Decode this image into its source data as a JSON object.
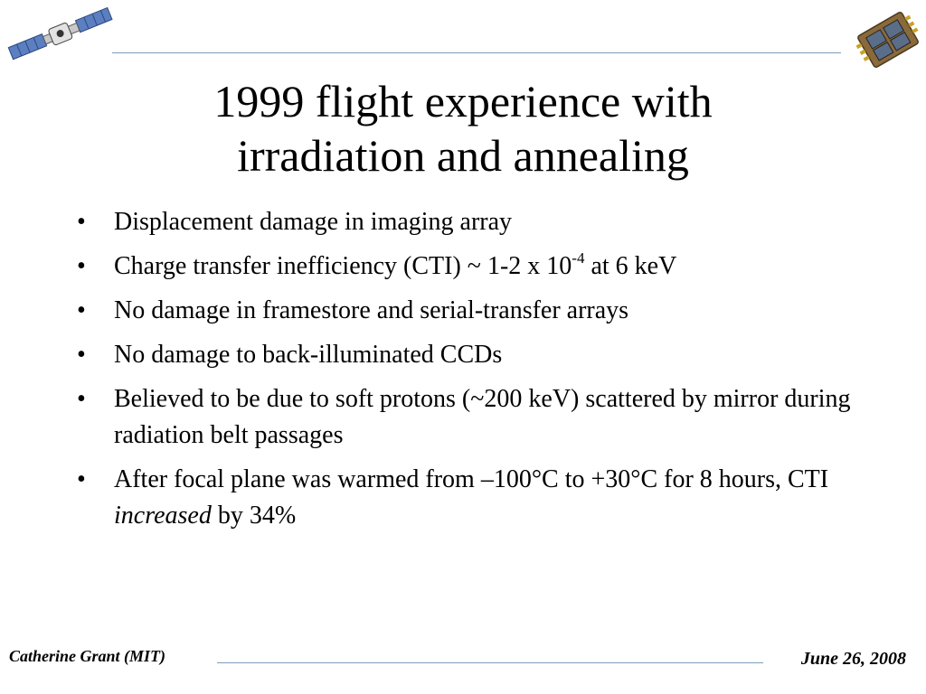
{
  "slide": {
    "title_line1": "1999 flight experience with",
    "title_line2": "irradiation and annealing",
    "bullets": [
      {
        "text": "Displacement damage in imaging array"
      },
      {
        "pre": "Charge transfer inefficiency (CTI) ~ 1-2 x 10",
        "sup": "-4",
        "post": " at 6 keV"
      },
      {
        "text": "No damage in framestore and serial-transfer arrays"
      },
      {
        "text": "No damage to back-illuminated CCDs"
      },
      {
        "text": "Believed to be due to soft protons (~200 keV) scattered by mirror during radiation belt passages"
      },
      {
        "pre": "After focal plane was warmed from –100°C to +30°C for 8 hours, CTI ",
        "em": "increased",
        "post": " by 34%"
      }
    ],
    "bullet_glyph": "•"
  },
  "footer": {
    "author": "Catherine Grant (MIT)",
    "date": "June 26, 2008"
  },
  "icons": {
    "left": "satellite-icon",
    "right": "ccd-chip-icon"
  },
  "colors": {
    "rule": "#7f9db9"
  }
}
